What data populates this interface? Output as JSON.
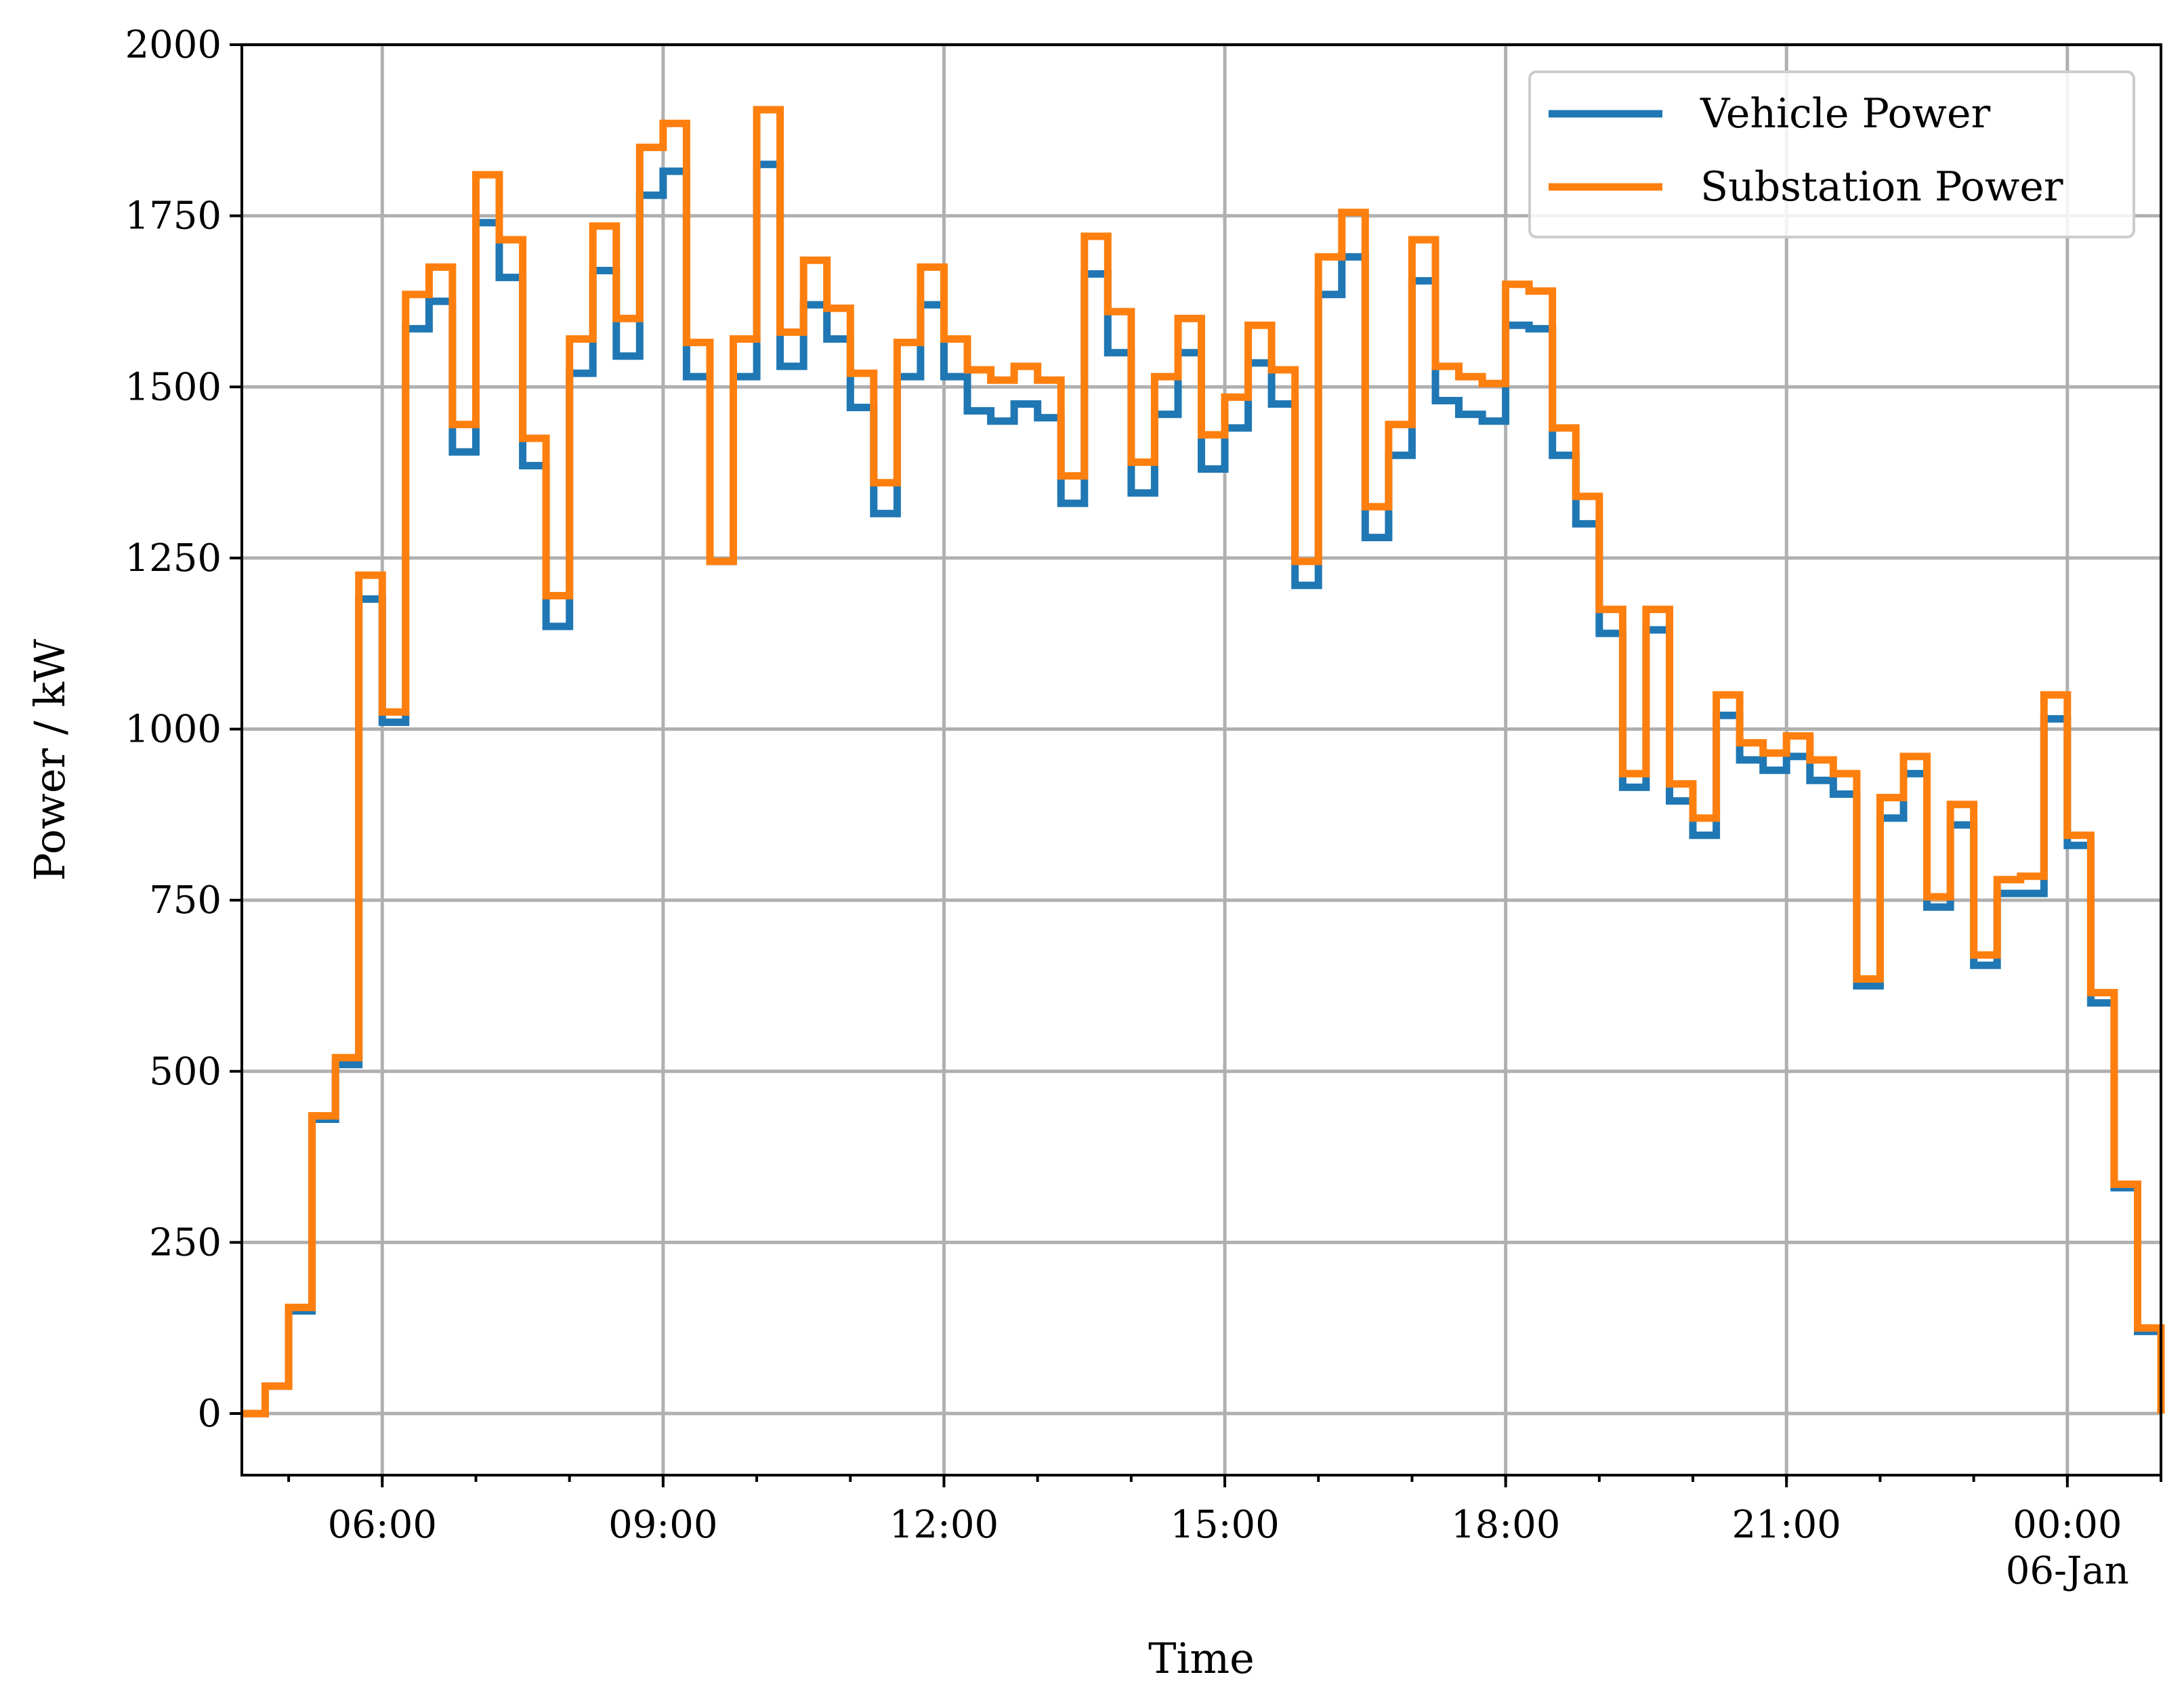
{
  "chart_data": {
    "type": "line",
    "title": "",
    "xlabel": "Time",
    "ylabel": "Power / kW",
    "ylim": [
      -90,
      2000
    ],
    "xlim": [
      "2023-01-05 04:30",
      "2023-01-06 01:00"
    ],
    "x_ticks": [
      {
        "x": "06:00",
        "label": "06:00",
        "sublabel": ""
      },
      {
        "x": "09:00",
        "label": "09:00",
        "sublabel": ""
      },
      {
        "x": "12:00",
        "label": "12:00",
        "sublabel": ""
      },
      {
        "x": "15:00",
        "label": "15:00",
        "sublabel": ""
      },
      {
        "x": "18:00",
        "label": "18:00",
        "sublabel": ""
      },
      {
        "x": "21:00",
        "label": "21:00",
        "sublabel": ""
      },
      {
        "x": "00:00",
        "label": "00:00",
        "sublabel": "06-Jan"
      }
    ],
    "y_ticks": [
      0,
      250,
      500,
      750,
      1000,
      1250,
      1500,
      1750,
      2000
    ],
    "grid": true,
    "legend_position": "top-right",
    "step": "post",
    "x": [
      "04:30",
      "04:45",
      "05:00",
      "05:15",
      "05:30",
      "05:45",
      "06:00",
      "06:15",
      "06:30",
      "06:45",
      "07:00",
      "07:15",
      "07:30",
      "07:45",
      "08:00",
      "08:15",
      "08:30",
      "08:45",
      "09:00",
      "09:15",
      "09:30",
      "09:45",
      "10:00",
      "10:15",
      "10:30",
      "10:45",
      "11:00",
      "11:15",
      "11:30",
      "11:45",
      "12:00",
      "12:15",
      "12:30",
      "12:45",
      "13:00",
      "13:15",
      "13:30",
      "13:45",
      "14:00",
      "14:15",
      "14:30",
      "14:45",
      "15:00",
      "15:15",
      "15:30",
      "15:45",
      "16:00",
      "16:15",
      "16:30",
      "16:45",
      "17:00",
      "17:15",
      "17:30",
      "17:45",
      "18:00",
      "18:15",
      "18:30",
      "18:45",
      "19:00",
      "19:15",
      "19:30",
      "19:45",
      "20:00",
      "20:15",
      "20:30",
      "20:45",
      "21:00",
      "21:15",
      "21:30",
      "21:45",
      "22:00",
      "22:15",
      "22:30",
      "22:45",
      "23:00",
      "23:15",
      "23:30",
      "23:45",
      "00:00",
      "00:15",
      "00:30",
      "00:45",
      "01:00"
    ],
    "series": [
      {
        "name": "Vehicle Power",
        "color": "#1f77b4",
        "values": [
          0,
          40,
          150,
          430,
          510,
          1190,
          1010,
          1585,
          1625,
          1405,
          1740,
          1660,
          1385,
          1150,
          1520,
          1670,
          1545,
          1780,
          1815,
          1515,
          1245,
          1515,
          1825,
          1530,
          1620,
          1570,
          1470,
          1315,
          1515,
          1620,
          1515,
          1465,
          1450,
          1475,
          1455,
          1330,
          1665,
          1550,
          1345,
          1460,
          1550,
          1380,
          1440,
          1535,
          1475,
          1210,
          1635,
          1690,
          1280,
          1400,
          1655,
          1480,
          1460,
          1450,
          1590,
          1585,
          1400,
          1300,
          1140,
          915,
          1145,
          895,
          845,
          1020,
          955,
          940,
          960,
          925,
          905,
          625,
          870,
          935,
          740,
          860,
          655,
          760,
          760,
          1015,
          830,
          600,
          330,
          120,
          0
        ]
      },
      {
        "name": "Substation Power",
        "color": "#ff7f0e",
        "values": [
          0,
          40,
          155,
          435,
          520,
          1225,
          1025,
          1635,
          1675,
          1445,
          1810,
          1715,
          1425,
          1195,
          1570,
          1735,
          1600,
          1850,
          1885,
          1565,
          1245,
          1570,
          1905,
          1580,
          1685,
          1615,
          1520,
          1360,
          1565,
          1675,
          1570,
          1525,
          1510,
          1530,
          1510,
          1370,
          1720,
          1610,
          1390,
          1515,
          1600,
          1430,
          1485,
          1590,
          1525,
          1245,
          1690,
          1755,
          1325,
          1445,
          1715,
          1530,
          1515,
          1505,
          1650,
          1640,
          1440,
          1340,
          1175,
          935,
          1175,
          920,
          870,
          1050,
          980,
          965,
          990,
          955,
          935,
          635,
          900,
          960,
          755,
          890,
          670,
          780,
          785,
          1050,
          845,
          615,
          335,
          125,
          0
        ]
      }
    ]
  }
}
